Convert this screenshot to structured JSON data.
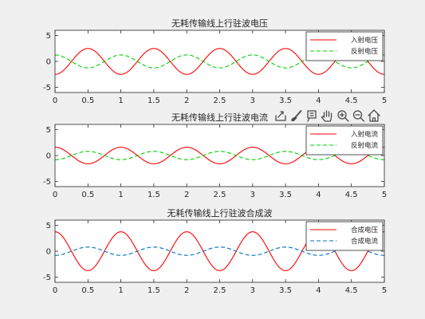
{
  "colors": {
    "figure_bg": "#f0f0f0",
    "axes_bg": "#ffffff",
    "axis": "#262626",
    "red": "#ff0000",
    "green": "#00d000",
    "blue": "#0072bd",
    "icon": "#4a4a4a"
  },
  "toolbar": {
    "icons": [
      "export-icon",
      "brush-icon",
      "datatip-icon",
      "pan-hand-icon",
      "zoom-in-icon",
      "zoom-out-icon",
      "home-icon"
    ]
  },
  "chart_data": [
    {
      "type": "line",
      "title": "无耗传输线上行驻波电压",
      "xlim": [
        0,
        5
      ],
      "ylim": [
        -6,
        6
      ],
      "xticks": [
        0,
        0.5,
        1,
        1.5,
        2,
        2.5,
        3,
        3.5,
        4,
        4.5,
        5
      ],
      "yticks": [
        -5,
        0,
        5
      ],
      "xtick_labels": [
        "0",
        "0.5",
        "1",
        "1.5",
        "2",
        "2.5",
        "3",
        "3.5",
        "4",
        "4.5",
        "5"
      ],
      "ytick_labels": [
        "-5",
        "0",
        "5"
      ],
      "legend_position": "top-right",
      "series": [
        {
          "name": "入射电压",
          "color": "#ff0000",
          "dash": "solid",
          "amplitude": 2.5,
          "period": 1,
          "peak_at": 0.5
        },
        {
          "name": "反射电压",
          "color": "#00d000",
          "dash": "dashed",
          "amplitude": 1.25,
          "period": 1,
          "peak_at": 0
        }
      ]
    },
    {
      "type": "line",
      "title": "无耗传输线上行驻波电流",
      "xlim": [
        0,
        5
      ],
      "ylim": [
        -6,
        6
      ],
      "xticks": [
        0,
        0.5,
        1,
        1.5,
        2,
        2.5,
        3,
        3.5,
        4,
        4.5,
        5
      ],
      "yticks": [
        -5,
        0,
        5
      ],
      "xtick_labels": [
        "0",
        "0.5",
        "1",
        "1.5",
        "2",
        "2.5",
        "3",
        "3.5",
        "4",
        "4.5",
        "5"
      ],
      "ytick_labels": [
        "-5",
        "0",
        "5"
      ],
      "legend_position": "top-right",
      "series": [
        {
          "name": "入射电流",
          "color": "#ff0000",
          "dash": "solid",
          "amplitude": 1.6,
          "period": 1,
          "peak_at": 0
        },
        {
          "name": "反射电流",
          "color": "#00d000",
          "dash": "dashed",
          "amplitude": 0.8,
          "period": 1,
          "peak_at": 0.5
        }
      ]
    },
    {
      "type": "line",
      "title": "无耗传输线上行驻波合成波",
      "xlim": [
        0,
        5
      ],
      "ylim": [
        -6,
        6
      ],
      "xticks": [
        0,
        0.5,
        1,
        1.5,
        2,
        2.5,
        3,
        3.5,
        4,
        4.5,
        5
      ],
      "yticks": [
        -5,
        0,
        5
      ],
      "xtick_labels": [
        "0",
        "0.5",
        "1",
        "1.5",
        "2",
        "2.5",
        "3",
        "3.5",
        "4",
        "4.5",
        "5"
      ],
      "ytick_labels": [
        "-5",
        "0",
        "5"
      ],
      "legend_position": "top-right",
      "series": [
        {
          "name": "合成电压",
          "color": "#ff0000",
          "dash": "solid",
          "amplitude": 3.75,
          "period": 1,
          "peak_at": 0
        },
        {
          "name": "合成电流",
          "color": "#0072bd",
          "dash": "dashed",
          "amplitude": 0.8,
          "period": 1,
          "peak_at": 0.5
        }
      ]
    }
  ]
}
